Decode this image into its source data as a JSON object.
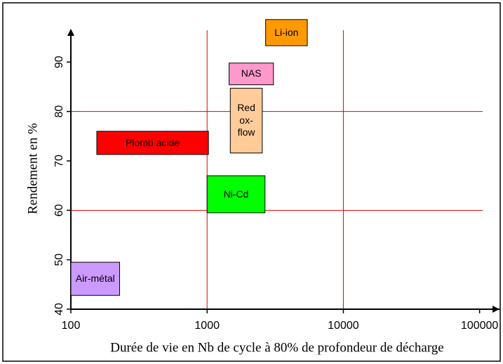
{
  "chart_data": {
    "type": "range",
    "xlabel": "Durée de vie en Nb de cycle à 80% de profondeur de décharge",
    "ylabel": "Rendement en %",
    "xscale": "log",
    "xlim": [
      100,
      140000
    ],
    "xticks": [
      100,
      1000,
      10000,
      100000
    ],
    "ylim": [
      40,
      99
    ],
    "yticks": [
      40,
      50,
      60,
      70,
      80,
      90
    ],
    "xgrid": [
      1000,
      10000
    ],
    "ygrid": [
      60,
      80
    ],
    "grid_color": "#e00000",
    "boxes": [
      {
        "label": "Li-ion",
        "color": "#ff9900",
        "x": [
          2690,
          5440
        ],
        "y": [
          93.3,
          98.6
        ]
      },
      {
        "label": "NAS",
        "color": "#ff99cc",
        "x": [
          1450,
          3070
        ],
        "y": [
          85.4,
          89.8
        ]
      },
      {
        "label": "Red\nox-\nflow",
        "color": "#ffcc99",
        "x": [
          1480,
          2540
        ],
        "y": [
          71.6,
          84.7
        ]
      },
      {
        "label": "Plomb acide",
        "color": "#ff0000",
        "x": [
          155,
          1023
        ],
        "y": [
          71.3,
          76.0
        ]
      },
      {
        "label": "Ni-Cd",
        "color": "#00ff00",
        "x": [
          1000,
          2660
        ],
        "y": [
          59.5,
          67.0
        ]
      },
      {
        "label": "Air-métal",
        "color": "#cc99ff",
        "x": [
          100,
          228
        ],
        "y": [
          42.8,
          49.5
        ]
      }
    ]
  }
}
